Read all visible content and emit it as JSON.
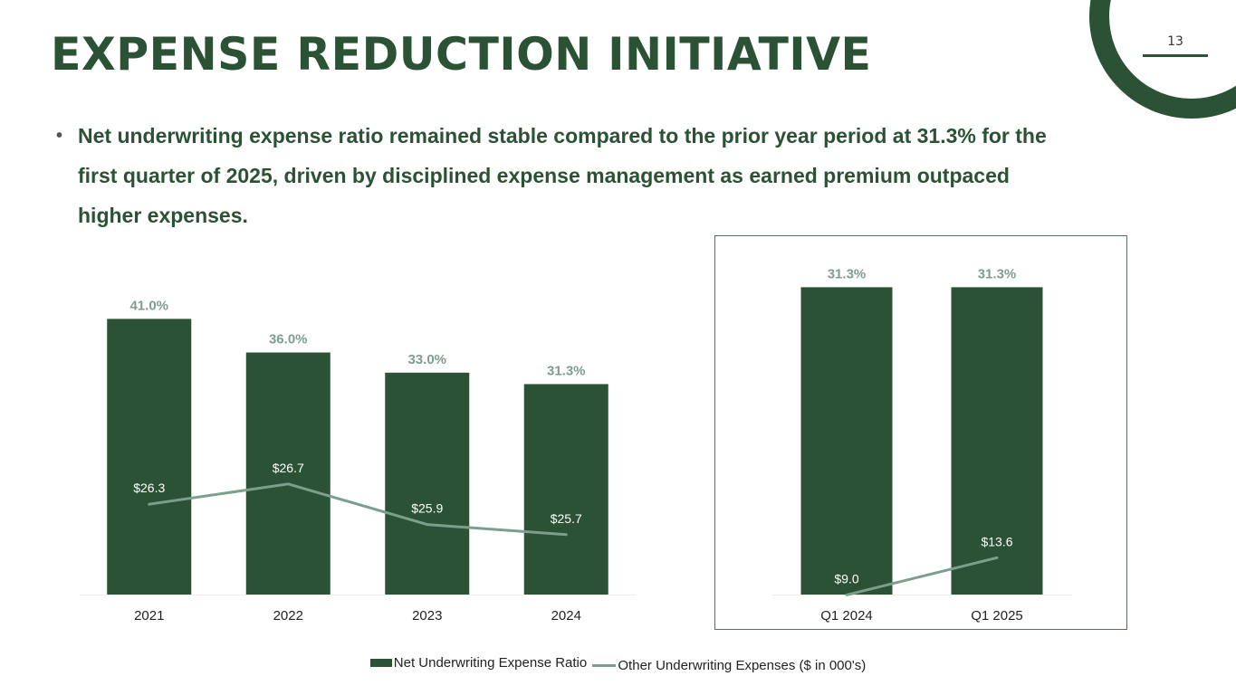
{
  "slide": {
    "title": "EXPENSE REDUCTION INITIATIVE",
    "page_number": "13",
    "bullet": "Net underwriting expense ratio remained stable compared to the prior year period at 31.3% for the first quarter of 2025, driven by disciplined expense management as earned premium outpaced higher expenses.",
    "bullet_marker": "•"
  },
  "colors": {
    "brand_green": "#2b5235",
    "line_green": "#7d9e8e",
    "bar_label": "#7d9e8e",
    "line_label": "#ffffff",
    "axis_text": "#222222"
  },
  "legend": {
    "items": [
      {
        "label": "Net Underwriting Expense Ratio",
        "type": "bar"
      },
      {
        "label": "Other Underwriting Expenses ($ in 000's)",
        "type": "line"
      }
    ]
  },
  "chart_data": [
    {
      "type": "bar",
      "title": "",
      "xlabel": "",
      "ylabel": "",
      "categories": [
        "2021",
        "2022",
        "2023",
        "2024"
      ],
      "series": [
        {
          "name": "Net Underwriting Expense Ratio",
          "type": "bar",
          "values": [
            41.0,
            36.0,
            33.0,
            31.3
          ],
          "labels": [
            "41.0%",
            "36.0%",
            "33.0%",
            "31.3%"
          ]
        },
        {
          "name": "Other Underwriting Expenses ($ in 000's)",
          "type": "line",
          "values": [
            26.3,
            26.7,
            25.9,
            25.7
          ],
          "labels": [
            "$26.3",
            "$26.7",
            "$25.9",
            "$25.7"
          ]
        }
      ],
      "grid": false,
      "legend": "bottom"
    },
    {
      "type": "bar",
      "title": "",
      "xlabel": "",
      "ylabel": "",
      "categories": [
        "Q1 2024",
        "Q1 2025"
      ],
      "series": [
        {
          "name": "Net Underwriting Expense Ratio",
          "type": "bar",
          "values": [
            31.3,
            31.3
          ],
          "labels": [
            "31.3%",
            "31.3%"
          ]
        },
        {
          "name": "Other Underwriting Expenses ($ in 000's)",
          "type": "line",
          "values": [
            9.0,
            13.6
          ],
          "labels": [
            "$9.0",
            "$13.6"
          ]
        }
      ],
      "grid": false,
      "legend": "bottom"
    }
  ]
}
